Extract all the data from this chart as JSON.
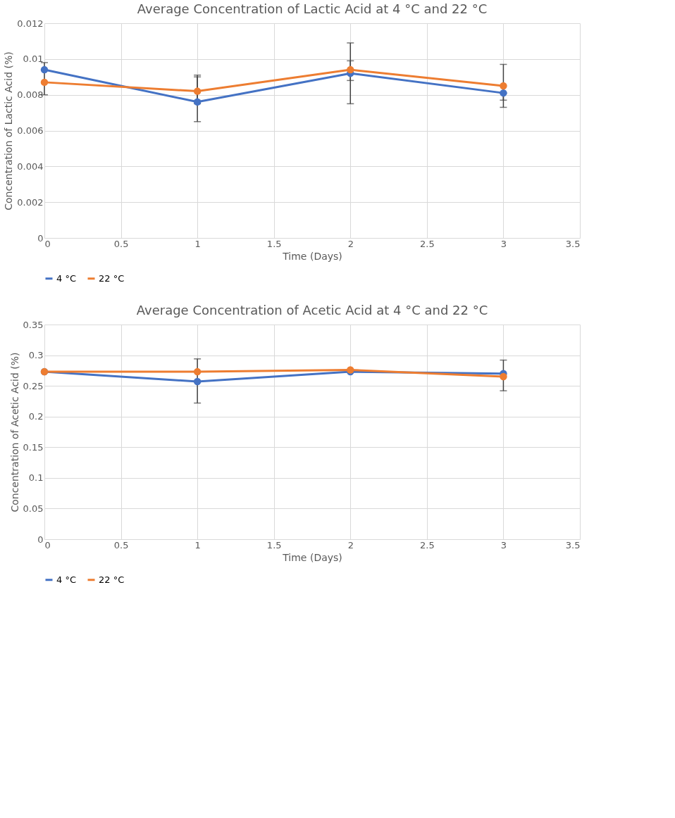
{
  "chart_data": [
    {
      "type": "line",
      "title": "Average Concentration of Lactic Acid at 4 °C and 22 °C",
      "xlabel": "Time (Days)",
      "ylabel": "Concentration of Lactic Acid (%)",
      "x": [
        0,
        1,
        2,
        3
      ],
      "xlim": [
        0,
        3.5
      ],
      "xticks": [
        0,
        0.5,
        1,
        1.5,
        2,
        2.5,
        3,
        3.5
      ],
      "ylim": [
        0,
        0.012
      ],
      "yticks": [
        0,
        0.002,
        0.004,
        0.006,
        0.008,
        0.01,
        0.012
      ],
      "grid": true,
      "legend": "bottom",
      "marker": "circle",
      "line_style": "solid",
      "series": [
        {
          "name": "4 °C",
          "color": "#4472c4",
          "values": [
            0.0094,
            0.0076,
            0.0092,
            0.0081
          ],
          "errors": [
            null,
            [
              0.0065,
              0.009
            ],
            [
              0.0088,
              0.0099
            ],
            [
              0.0077,
              0.0081
            ]
          ]
        },
        {
          "name": "22 °C",
          "color": "#ed7d31",
          "values": [
            0.0087,
            0.0082,
            0.0094,
            0.0085
          ],
          "errors": [
            [
              0.008,
              0.0098
            ],
            [
              0.0075,
              0.0091
            ],
            [
              0.0075,
              0.0109
            ],
            [
              0.0073,
              0.0097
            ]
          ]
        }
      ]
    },
    {
      "type": "line",
      "title": "Average Concentration of Acetic Acid at 4 °C and 22 °C",
      "xlabel": "Time (Days)",
      "ylabel": "Concentration of Acetic Acid (%)",
      "x": [
        0,
        1,
        2,
        3
      ],
      "xlim": [
        0,
        3.5
      ],
      "xticks": [
        0,
        0.5,
        1,
        1.5,
        2,
        2.5,
        3,
        3.5
      ],
      "ylim": [
        0,
        0.35
      ],
      "yticks": [
        0,
        0.05,
        0.1,
        0.15,
        0.2,
        0.25,
        0.3,
        0.35
      ],
      "grid": true,
      "legend": "bottom",
      "marker": "circle",
      "line_style": "solid",
      "series": [
        {
          "name": "4 °C",
          "color": "#4472c4",
          "values": [
            0.273,
            0.257,
            0.273,
            0.27
          ],
          "errors": [
            null,
            [
              0.222,
              0.294
            ],
            null,
            null
          ]
        },
        {
          "name": "22 °C",
          "color": "#ed7d31",
          "values": [
            0.273,
            0.273,
            0.276,
            0.265
          ],
          "errors": [
            null,
            null,
            null,
            [
              0.242,
              0.292
            ]
          ]
        }
      ]
    }
  ]
}
